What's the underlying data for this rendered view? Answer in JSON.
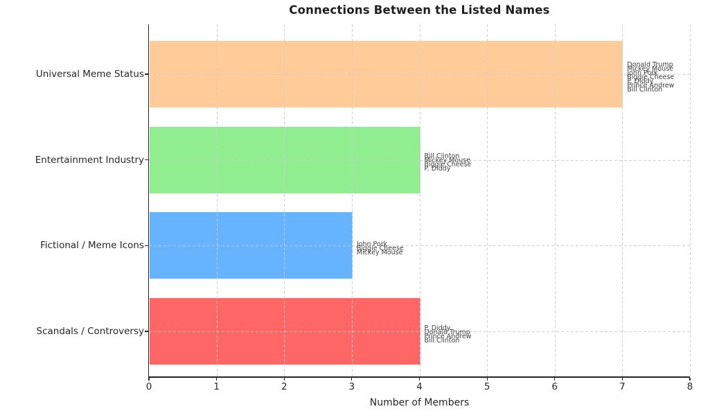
{
  "chart_data": {
    "type": "bar",
    "orientation": "horizontal",
    "title": "Connections Between the Listed Names",
    "xlabel": "Number of Members",
    "ylabel": "",
    "xlim": [
      0,
      8
    ],
    "xticks": [
      "0",
      "1",
      "2",
      "3",
      "4",
      "5",
      "6",
      "7",
      "8"
    ],
    "grid": {
      "visible": true,
      "style": "dashed",
      "color": "#cdcdcd",
      "axes": "both"
    },
    "legend": "none",
    "categories": [
      "Universal Meme Status",
      "Entertainment Industry",
      "Fictional / Meme Icons",
      "Scandals / Controversy"
    ],
    "values": [
      7,
      4,
      3,
      4
    ],
    "bar_colors": [
      "#ffcc99",
      "#90ee90",
      "#66b3ff",
      "#ff6666"
    ],
    "member_labels": [
      [
        "Donald Trump",
        "Mickey Mouse",
        "John Pork",
        "Biggie Cheese",
        "P. Diddy",
        "Prince Andrew",
        "Bill Clinton"
      ],
      [
        "Bill Clinton",
        "Mickey Mouse",
        "Biggie Cheese",
        "P. Diddy"
      ],
      [
        "John Pork",
        "Biggie Cheese",
        "Mickey Mouse"
      ],
      [
        "P. Diddy",
        "Donald Trump",
        "Prince Andrew",
        "Bill Clinton"
      ]
    ]
  }
}
